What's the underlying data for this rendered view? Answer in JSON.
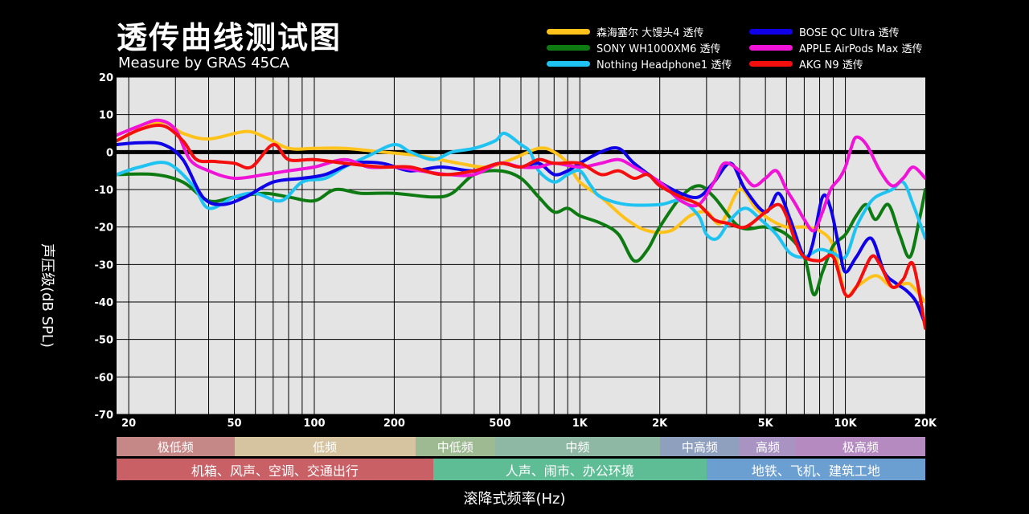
{
  "header": {
    "title": "透传曲线测试图",
    "subtitle": "Measure by GRAS 45CA"
  },
  "colors": {
    "plot_bg": "#e4e4e4",
    "grid": "#000000",
    "zero_line": "#000000"
  },
  "chart_data": {
    "type": "line",
    "title": "透传曲线测试图",
    "subtitle": "Measure by GRAS 45CA",
    "xlabel": "滚降式频率(Hz)",
    "ylabel": "声压级(dB SPL)",
    "xscale": "log",
    "xlim": [
      18,
      20000
    ],
    "ylim": [
      -70,
      20
    ],
    "grid": true,
    "legend_position": "top-right",
    "x_ticks": [
      {
        "value": 20,
        "label": "20"
      },
      {
        "value": 50,
        "label": "50"
      },
      {
        "value": 100,
        "label": "100"
      },
      {
        "value": 200,
        "label": "200"
      },
      {
        "value": 500,
        "label": "500"
      },
      {
        "value": 1000,
        "label": "1K"
      },
      {
        "value": 2000,
        "label": "2K"
      },
      {
        "value": 5000,
        "label": "5K"
      },
      {
        "value": 10000,
        "label": "10K"
      },
      {
        "value": 20000,
        "label": "20K"
      }
    ],
    "y_ticks": [
      20,
      10,
      0,
      -10,
      -20,
      -30,
      -40,
      -50,
      -60,
      -70
    ],
    "series": [
      {
        "name": "森海塞尔 大馒头4 透传",
        "color": "#ffc21a",
        "points": [
          [
            18,
            3
          ],
          [
            22,
            6
          ],
          [
            27,
            8
          ],
          [
            32,
            5
          ],
          [
            40,
            3.5
          ],
          [
            55,
            5.5
          ],
          [
            65,
            4
          ],
          [
            80,
            1
          ],
          [
            100,
            1
          ],
          [
            130,
            1
          ],
          [
            180,
            0
          ],
          [
            250,
            -1
          ],
          [
            350,
            -3
          ],
          [
            450,
            -4
          ],
          [
            550,
            -2
          ],
          [
            700,
            1
          ],
          [
            800,
            0
          ],
          [
            900,
            -3
          ],
          [
            1000,
            -8
          ],
          [
            1200,
            -12
          ],
          [
            1500,
            -18
          ],
          [
            1800,
            -21
          ],
          [
            2200,
            -21
          ],
          [
            2600,
            -17
          ],
          [
            3000,
            -16
          ],
          [
            3400,
            -19
          ],
          [
            4000,
            -10
          ],
          [
            4600,
            -15
          ],
          [
            5200,
            -18
          ],
          [
            6000,
            -20
          ],
          [
            7000,
            -20
          ],
          [
            8000,
            -21
          ],
          [
            9000,
            -25
          ],
          [
            10000,
            -38
          ],
          [
            11000,
            -36
          ],
          [
            13000,
            -33
          ],
          [
            15000,
            -36
          ],
          [
            17000,
            -35
          ],
          [
            18000,
            -36
          ],
          [
            20000,
            -40
          ]
        ]
      },
      {
        "name": "SONY WH1000XM6 透传",
        "color": "#0e7a12",
        "points": [
          [
            18,
            -6
          ],
          [
            25,
            -6
          ],
          [
            32,
            -8
          ],
          [
            40,
            -13
          ],
          [
            50,
            -12
          ],
          [
            65,
            -11
          ],
          [
            80,
            -12
          ],
          [
            100,
            -13
          ],
          [
            120,
            -10
          ],
          [
            150,
            -11
          ],
          [
            200,
            -11
          ],
          [
            280,
            -12
          ],
          [
            330,
            -11
          ],
          [
            400,
            -6
          ],
          [
            500,
            -5
          ],
          [
            600,
            -7
          ],
          [
            700,
            -12
          ],
          [
            800,
            -16
          ],
          [
            900,
            -15
          ],
          [
            1000,
            -17
          ],
          [
            1200,
            -19
          ],
          [
            1400,
            -22
          ],
          [
            1600,
            -29
          ],
          [
            1800,
            -26
          ],
          [
            2000,
            -20
          ],
          [
            2400,
            -12
          ],
          [
            2800,
            -9
          ],
          [
            3200,
            -12
          ],
          [
            4000,
            -20
          ],
          [
            5000,
            -20
          ],
          [
            6000,
            -22
          ],
          [
            7000,
            -28
          ],
          [
            7600,
            -38
          ],
          [
            8200,
            -32
          ],
          [
            9000,
            -25
          ],
          [
            10000,
            -22
          ],
          [
            11000,
            -17
          ],
          [
            12000,
            -14
          ],
          [
            13000,
            -18
          ],
          [
            14500,
            -14
          ],
          [
            16000,
            -22
          ],
          [
            17500,
            -28
          ],
          [
            19000,
            -18
          ],
          [
            20000,
            -10
          ]
        ]
      },
      {
        "name": "Nothing Headphone1 透传",
        "color": "#1fc3f2",
        "points": [
          [
            18,
            -6
          ],
          [
            22,
            -4
          ],
          [
            28,
            -3
          ],
          [
            35,
            -9
          ],
          [
            40,
            -15
          ],
          [
            50,
            -12
          ],
          [
            60,
            -11
          ],
          [
            75,
            -13
          ],
          [
            90,
            -8
          ],
          [
            110,
            -7
          ],
          [
            130,
            -4
          ],
          [
            160,
            -1
          ],
          [
            200,
            2
          ],
          [
            230,
            0
          ],
          [
            280,
            -2
          ],
          [
            330,
            0
          ],
          [
            400,
            1
          ],
          [
            480,
            3
          ],
          [
            520,
            5
          ],
          [
            600,
            2
          ],
          [
            650,
            0
          ],
          [
            700,
            -5
          ],
          [
            800,
            -8
          ],
          [
            900,
            -6
          ],
          [
            1000,
            -5
          ],
          [
            1100,
            -9
          ],
          [
            1200,
            -12
          ],
          [
            1500,
            -14
          ],
          [
            2000,
            -14
          ],
          [
            2400,
            -13
          ],
          [
            2800,
            -17
          ],
          [
            3000,
            -22
          ],
          [
            3300,
            -23
          ],
          [
            3700,
            -18
          ],
          [
            4200,
            -15
          ],
          [
            4800,
            -18
          ],
          [
            5500,
            -22
          ],
          [
            6200,
            -27
          ],
          [
            7000,
            -28
          ],
          [
            8000,
            -26
          ],
          [
            9000,
            -27
          ],
          [
            10000,
            -28
          ],
          [
            11000,
            -20
          ],
          [
            12000,
            -15
          ],
          [
            13000,
            -12
          ],
          [
            15000,
            -10
          ],
          [
            16500,
            -8
          ],
          [
            18000,
            -14
          ],
          [
            20000,
            -23
          ]
        ]
      },
      {
        "name": "BOSE QC Ultra 透传",
        "color": "#1000e8",
        "points": [
          [
            18,
            2
          ],
          [
            22,
            2.5
          ],
          [
            27,
            2
          ],
          [
            32,
            -2
          ],
          [
            38,
            -12
          ],
          [
            45,
            -14
          ],
          [
            55,
            -12
          ],
          [
            70,
            -8
          ],
          [
            90,
            -7
          ],
          [
            110,
            -6
          ],
          [
            140,
            -3
          ],
          [
            180,
            -3
          ],
          [
            230,
            -5
          ],
          [
            300,
            -4
          ],
          [
            400,
            -5
          ],
          [
            500,
            -3
          ],
          [
            600,
            -4
          ],
          [
            700,
            -3
          ],
          [
            800,
            -6
          ],
          [
            900,
            -5
          ],
          [
            1000,
            -3
          ],
          [
            1200,
            0
          ],
          [
            1400,
            1
          ],
          [
            1600,
            -3
          ],
          [
            2000,
            -8
          ],
          [
            2400,
            -11
          ],
          [
            2800,
            -12
          ],
          [
            3200,
            -8
          ],
          [
            3700,
            -3
          ],
          [
            4200,
            -10
          ],
          [
            5000,
            -16
          ],
          [
            5600,
            -11
          ],
          [
            6200,
            -18
          ],
          [
            7000,
            -28
          ],
          [
            7500,
            -25
          ],
          [
            8200,
            -12
          ],
          [
            8800,
            -15
          ],
          [
            9500,
            -26
          ],
          [
            10000,
            -32
          ],
          [
            11000,
            -28
          ],
          [
            12500,
            -23
          ],
          [
            14000,
            -32
          ],
          [
            15500,
            -35
          ],
          [
            17000,
            -37
          ],
          [
            18500,
            -40
          ],
          [
            20000,
            -46
          ]
        ]
      },
      {
        "name": "APPLE AirPods Max 透传",
        "color": "#f012d6",
        "points": [
          [
            18,
            4.5
          ],
          [
            22,
            7
          ],
          [
            26,
            8.5
          ],
          [
            30,
            6
          ],
          [
            34,
            -2
          ],
          [
            40,
            -5
          ],
          [
            50,
            -7
          ],
          [
            65,
            -6
          ],
          [
            80,
            -5
          ],
          [
            100,
            -4
          ],
          [
            130,
            -2
          ],
          [
            160,
            -4
          ],
          [
            200,
            -4
          ],
          [
            250,
            -5
          ],
          [
            320,
            -6
          ],
          [
            400,
            -6
          ],
          [
            500,
            -3
          ],
          [
            600,
            -4
          ],
          [
            700,
            -4
          ],
          [
            800,
            -3
          ],
          [
            1000,
            -4
          ],
          [
            1200,
            -3
          ],
          [
            1400,
            -2
          ],
          [
            1600,
            -4
          ],
          [
            2000,
            -8
          ],
          [
            2400,
            -13
          ],
          [
            2800,
            -14
          ],
          [
            3200,
            -8
          ],
          [
            3500,
            -3
          ],
          [
            4000,
            -5
          ],
          [
            4500,
            -9
          ],
          [
            5000,
            -7
          ],
          [
            5500,
            -5
          ],
          [
            6000,
            -10
          ],
          [
            6500,
            -14
          ],
          [
            7000,
            -18
          ],
          [
            7600,
            -21
          ],
          [
            8200,
            -16
          ],
          [
            8800,
            -10
          ],
          [
            9500,
            -7
          ],
          [
            10000,
            -4
          ],
          [
            10500,
            1
          ],
          [
            11000,
            4
          ],
          [
            12000,
            2
          ],
          [
            13500,
            -5
          ],
          [
            15000,
            -9
          ],
          [
            16500,
            -7
          ],
          [
            18000,
            -4
          ],
          [
            20000,
            -7
          ]
        ]
      },
      {
        "name": "AKG N9 透传",
        "color": "#f40e0e",
        "points": [
          [
            18,
            3
          ],
          [
            22,
            6
          ],
          [
            27,
            7
          ],
          [
            32,
            3
          ],
          [
            36,
            -2
          ],
          [
            42,
            -2.5
          ],
          [
            50,
            -3
          ],
          [
            58,
            -4
          ],
          [
            70,
            2
          ],
          [
            80,
            -2
          ],
          [
            100,
            -2
          ],
          [
            130,
            -3
          ],
          [
            180,
            -4
          ],
          [
            230,
            -4
          ],
          [
            300,
            -6
          ],
          [
            400,
            -5
          ],
          [
            500,
            -3
          ],
          [
            600,
            -4
          ],
          [
            700,
            -2
          ],
          [
            800,
            -3
          ],
          [
            1000,
            -3
          ],
          [
            1200,
            -6
          ],
          [
            1400,
            -5
          ],
          [
            1600,
            -7
          ],
          [
            1800,
            -6
          ],
          [
            2000,
            -9
          ],
          [
            2400,
            -12
          ],
          [
            2800,
            -14
          ],
          [
            3200,
            -18
          ],
          [
            3600,
            -19
          ],
          [
            4200,
            -20
          ],
          [
            5000,
            -16
          ],
          [
            5600,
            -14
          ],
          [
            6000,
            -17
          ],
          [
            6500,
            -24
          ],
          [
            7000,
            -28
          ],
          [
            8000,
            -29
          ],
          [
            9000,
            -28
          ],
          [
            10000,
            -38
          ],
          [
            11000,
            -36
          ],
          [
            12500,
            -28
          ],
          [
            13500,
            -30
          ],
          [
            15000,
            -36
          ],
          [
            16500,
            -34
          ],
          [
            18000,
            -30
          ],
          [
            20000,
            -47
          ]
        ]
      }
    ]
  },
  "bands_row1": [
    {
      "label": "极低频",
      "from": 18,
      "to": 50,
      "color": "#c68787"
    },
    {
      "label": "低频",
      "from": 50,
      "to": 240,
      "color": "#d6c4a0"
    },
    {
      "label": "中低频",
      "from": 240,
      "to": 480,
      "color": "#9dba92"
    },
    {
      "label": "中频",
      "from": 480,
      "to": 2000,
      "color": "#8fb8a4"
    },
    {
      "label": "中高频",
      "from": 2000,
      "to": 4000,
      "color": "#8fa0bf"
    },
    {
      "label": "高频",
      "from": 4000,
      "to": 6500,
      "color": "#a893c2"
    },
    {
      "label": "极高频",
      "from": 6500,
      "to": 20000,
      "color": "#b48ac0"
    }
  ],
  "bands_row2": [
    {
      "label": "机箱、风声、空调、交通出行",
      "from": 18,
      "to": 280,
      "color": "#c96066"
    },
    {
      "label": "人声、闹市、办公环境",
      "from": 280,
      "to": 3000,
      "color": "#5ebd95"
    },
    {
      "label": "地铁、飞机、建筑工地",
      "from": 3000,
      "to": 20000,
      "color": "#6b9ed1"
    }
  ]
}
